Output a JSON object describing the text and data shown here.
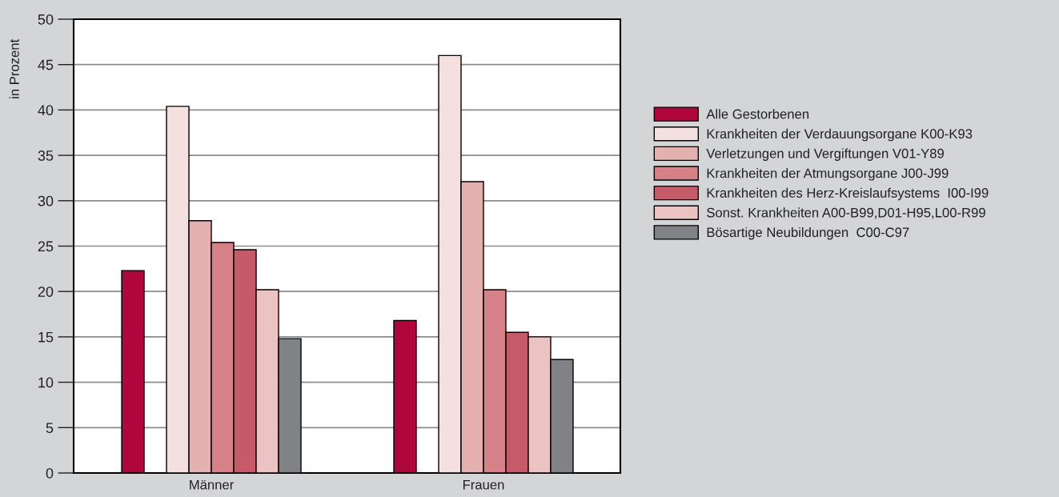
{
  "chart_data": {
    "type": "bar",
    "ylabel": "in Prozent",
    "categories": [
      "Männer",
      "Frauen"
    ],
    "series": [
      {
        "name": "Alle Gestorbenen",
        "color": "#b0063e",
        "values": [
          22.3,
          16.8
        ]
      },
      {
        "name": "Krankheiten der Verdauungsorgane K00-K93",
        "color": "#f5e0e0",
        "values": [
          40.4,
          46.0
        ]
      },
      {
        "name": "Verletzungen und Vergiftungen V01-Y89",
        "color": "#e4b0b0",
        "values": [
          27.8,
          32.1
        ]
      },
      {
        "name": "Krankheiten der Atmungsorgane J00-J99",
        "color": "#d68187",
        "values": [
          25.4,
          20.2
        ]
      },
      {
        "name": "Krankheiten des Herz-Kreislaufsystems  I00-I99",
        "color": "#c55a69",
        "values": [
          24.6,
          15.5
        ]
      },
      {
        "name": "Sonst. Krankheiten A00-B99,D01-H95,L00-R99",
        "color": "#ecc3c3",
        "values": [
          20.2,
          15.0
        ]
      },
      {
        "name": "Bösartige Neubildungen  C00-C97",
        "color": "#808285",
        "values": [
          14.8,
          12.5
        ]
      }
    ],
    "ylim": [
      0,
      50
    ],
    "yticks": [
      0,
      5,
      10,
      15,
      20,
      25,
      30,
      35,
      40,
      45,
      50
    ],
    "grid": "y",
    "legend": "right"
  }
}
